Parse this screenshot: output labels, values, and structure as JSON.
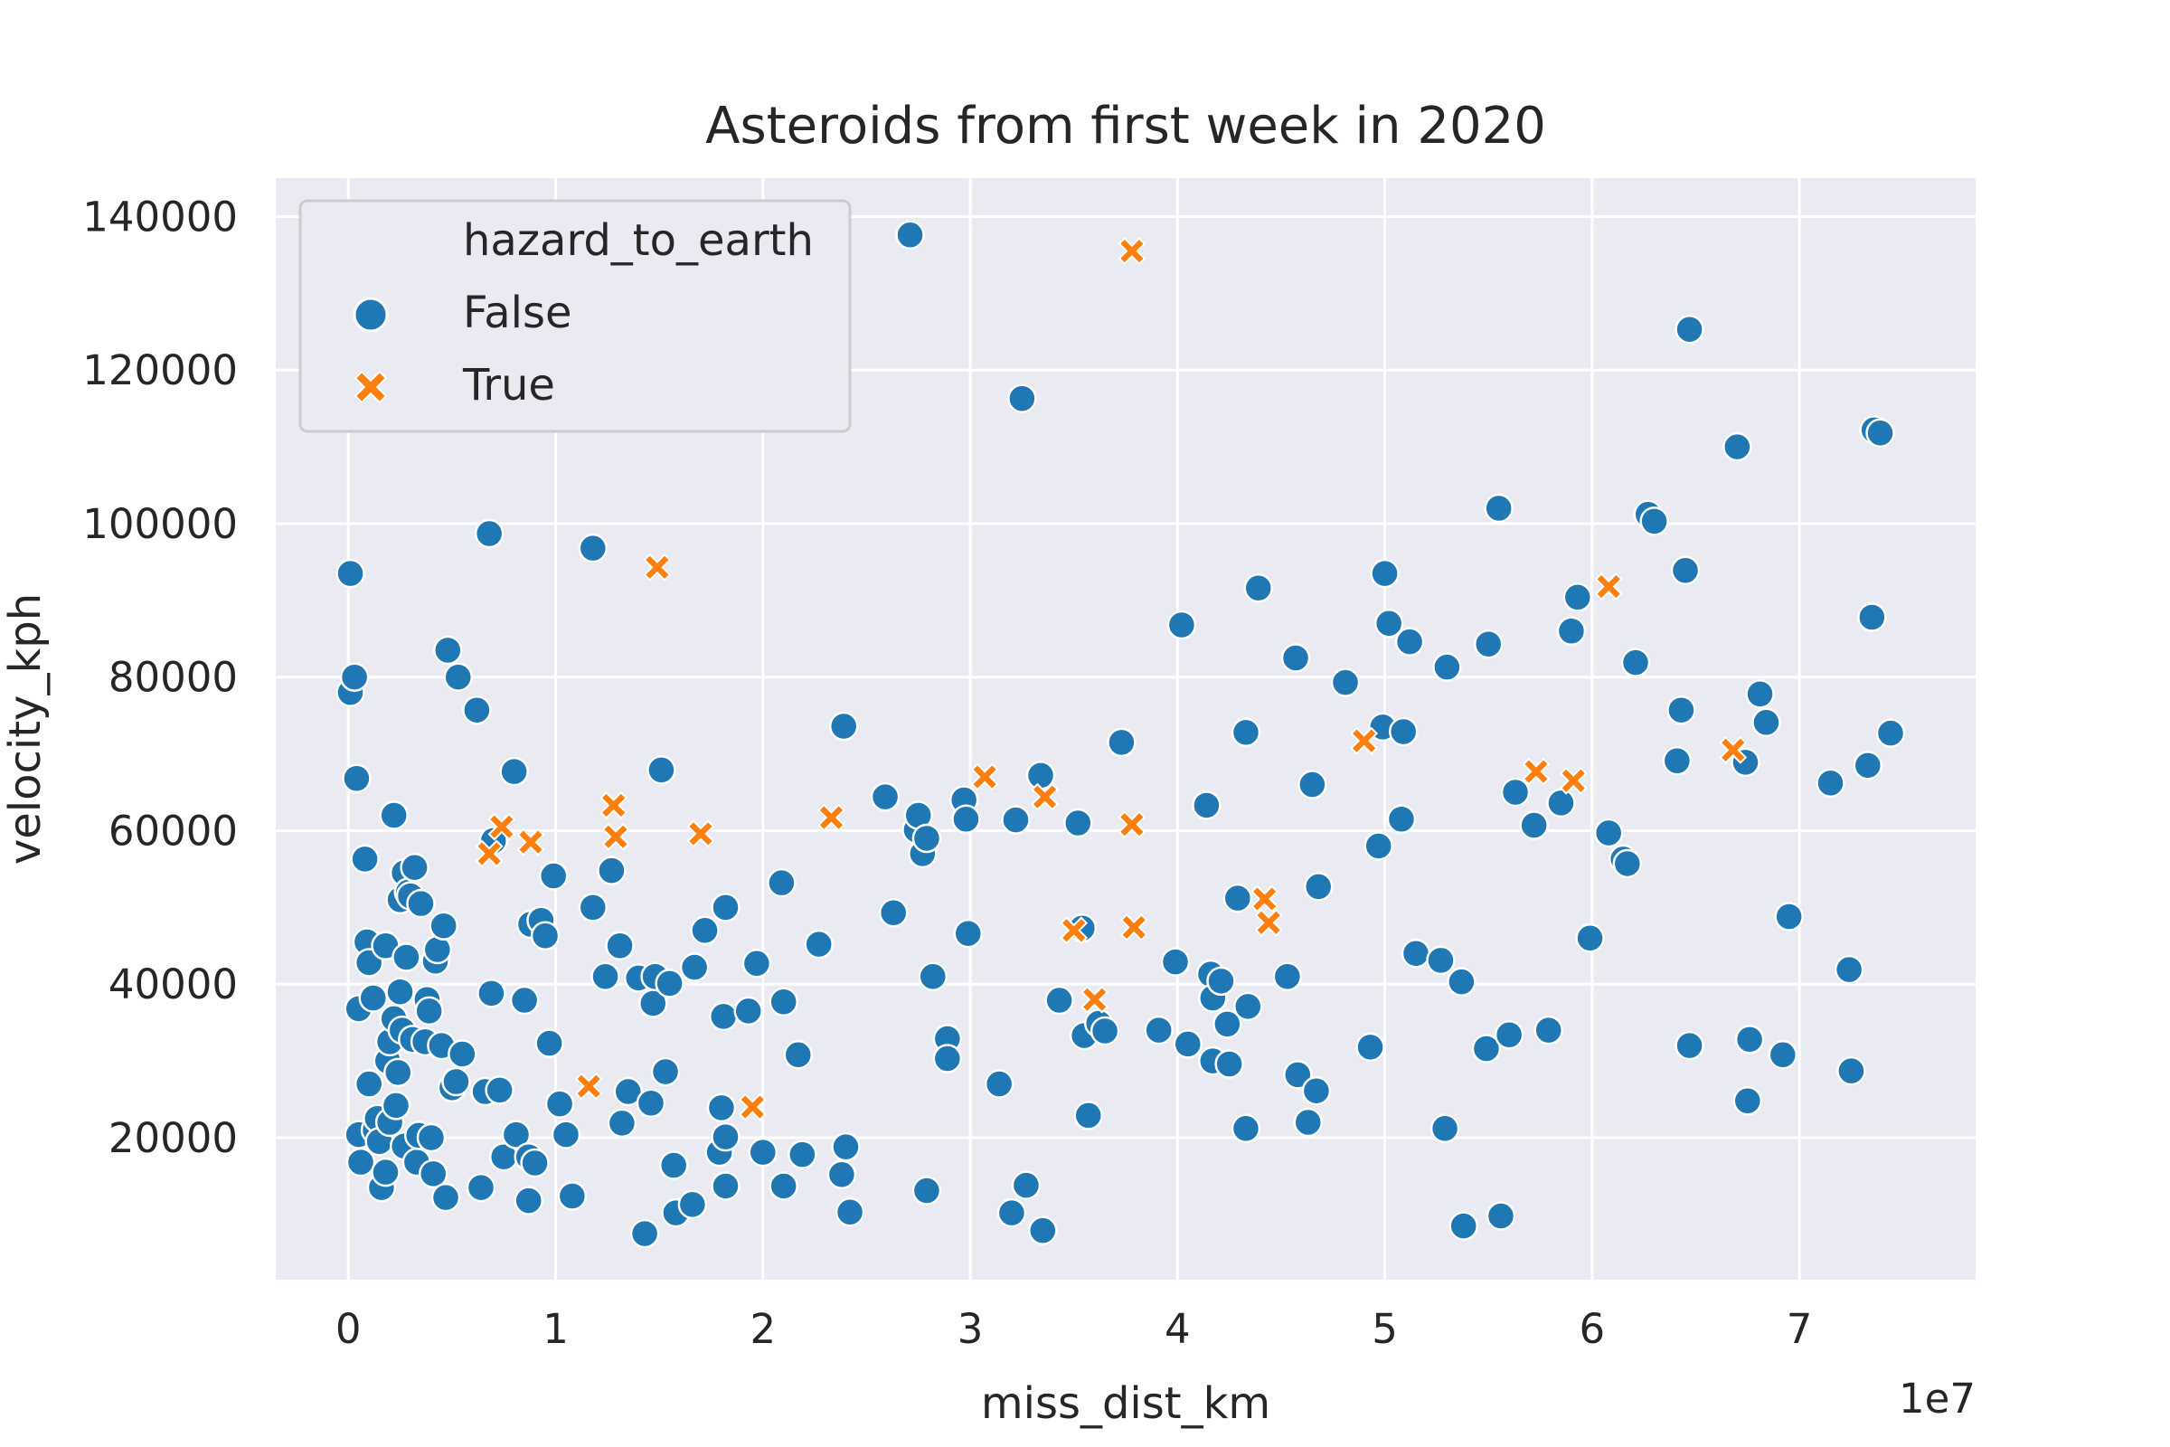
{
  "chart_data": {
    "type": "scatter",
    "title": "Asteroids from first week in 2020",
    "xlabel": "miss_dist_km",
    "ylabel": "velocity_kph",
    "x_offset_label": "1e7",
    "xlim": [
      -0.35,
      7.85
    ],
    "ylim": [
      1500,
      145000
    ],
    "x_ticks": [
      0,
      1,
      2,
      3,
      4,
      5,
      6,
      7
    ],
    "x_tick_labels": [
      "0",
      "1",
      "2",
      "3",
      "4",
      "5",
      "6",
      "7"
    ],
    "y_ticks": [
      20000,
      40000,
      60000,
      80000,
      100000,
      120000,
      140000
    ],
    "y_tick_labels": [
      "20000",
      "40000",
      "60000",
      "80000",
      "100000",
      "120000",
      "140000"
    ],
    "grid": true,
    "legend": {
      "title": "hazard_to_earth",
      "placement": "top-left",
      "entries": [
        "False",
        "True"
      ]
    },
    "colors": {
      "background": "#eaeaf2",
      "grid": "#ffffff",
      "False": "#1f77b4",
      "True": "#ff7f0e"
    },
    "series": [
      {
        "name": "False",
        "marker": "circle",
        "points": [
          [
            0.01,
            93500
          ],
          [
            0.01,
            78000
          ],
          [
            0.03,
            80000
          ],
          [
            0.04,
            66800
          ],
          [
            0.05,
            36800
          ],
          [
            0.05,
            20400
          ],
          [
            0.06,
            16800
          ],
          [
            0.08,
            56300
          ],
          [
            0.09,
            45500
          ],
          [
            0.1,
            42800
          ],
          [
            0.1,
            27000
          ],
          [
            0.12,
            38200
          ],
          [
            0.13,
            21000
          ],
          [
            0.14,
            22500
          ],
          [
            0.15,
            19500
          ],
          [
            0.16,
            13500
          ],
          [
            0.18,
            45000
          ],
          [
            0.18,
            15500
          ],
          [
            0.19,
            30000
          ],
          [
            0.2,
            22000
          ],
          [
            0.2,
            32500
          ],
          [
            0.22,
            35500
          ],
          [
            0.22,
            62000
          ],
          [
            0.23,
            24200
          ],
          [
            0.24,
            28500
          ],
          [
            0.25,
            51000
          ],
          [
            0.25,
            39000
          ],
          [
            0.26,
            34000
          ],
          [
            0.27,
            54500
          ],
          [
            0.27,
            18900
          ],
          [
            0.28,
            43500
          ],
          [
            0.29,
            52000
          ],
          [
            0.3,
            51500
          ],
          [
            0.31,
            32800
          ],
          [
            0.32,
            55200
          ],
          [
            0.33,
            16800
          ],
          [
            0.34,
            20300
          ],
          [
            0.35,
            50500
          ],
          [
            0.37,
            32500
          ],
          [
            0.38,
            38000
          ],
          [
            0.39,
            36500
          ],
          [
            0.4,
            20000
          ],
          [
            0.41,
            15300
          ],
          [
            0.42,
            43000
          ],
          [
            0.43,
            44500
          ],
          [
            0.45,
            32000
          ],
          [
            0.46,
            47600
          ],
          [
            0.47,
            12200
          ],
          [
            0.48,
            83500
          ],
          [
            0.5,
            26500
          ],
          [
            0.52,
            27300
          ],
          [
            0.53,
            80000
          ],
          [
            0.55,
            30900
          ],
          [
            0.62,
            75700
          ],
          [
            0.64,
            13500
          ],
          [
            0.66,
            26000
          ],
          [
            0.68,
            98700
          ],
          [
            0.69,
            38800
          ],
          [
            0.7,
            58700
          ],
          [
            0.73,
            26200
          ],
          [
            0.75,
            17500
          ],
          [
            0.8,
            67700
          ],
          [
            0.81,
            20400
          ],
          [
            0.85,
            37900
          ],
          [
            0.87,
            11800
          ],
          [
            0.87,
            17500
          ],
          [
            0.88,
            47800
          ],
          [
            0.9,
            16700
          ],
          [
            0.93,
            48300
          ],
          [
            0.95,
            46300
          ],
          [
            0.97,
            32300
          ],
          [
            0.99,
            54100
          ],
          [
            1.02,
            24400
          ],
          [
            1.05,
            20400
          ],
          [
            1.08,
            12400
          ],
          [
            1.18,
            50000
          ],
          [
            1.18,
            96800
          ],
          [
            1.24,
            41000
          ],
          [
            1.27,
            54800
          ],
          [
            1.31,
            45000
          ],
          [
            1.32,
            21900
          ],
          [
            1.35,
            26000
          ],
          [
            1.4,
            40800
          ],
          [
            1.43,
            7500
          ],
          [
            1.46,
            24500
          ],
          [
            1.47,
            37500
          ],
          [
            1.48,
            41000
          ],
          [
            1.51,
            67900
          ],
          [
            1.53,
            28600
          ],
          [
            1.55,
            40100
          ],
          [
            1.57,
            16400
          ],
          [
            1.58,
            10200
          ],
          [
            1.66,
            11300
          ],
          [
            1.67,
            42200
          ],
          [
            1.72,
            47000
          ],
          [
            1.79,
            18100
          ],
          [
            1.8,
            23900
          ],
          [
            1.81,
            35800
          ],
          [
            1.82,
            50000
          ],
          [
            1.82,
            13700
          ],
          [
            1.82,
            20100
          ],
          [
            1.93,
            36500
          ],
          [
            1.97,
            42700
          ],
          [
            2.0,
            18100
          ],
          [
            2.09,
            53200
          ],
          [
            2.1,
            37700
          ],
          [
            2.1,
            13700
          ],
          [
            2.17,
            30800
          ],
          [
            2.19,
            17800
          ],
          [
            2.27,
            45200
          ],
          [
            2.38,
            15200
          ],
          [
            2.39,
            73600
          ],
          [
            2.4,
            18800
          ],
          [
            2.42,
            10300
          ],
          [
            2.59,
            64400
          ],
          [
            2.63,
            49300
          ],
          [
            2.71,
            137600
          ],
          [
            2.74,
            60100
          ],
          [
            2.75,
            62000
          ],
          [
            2.77,
            57000
          ],
          [
            2.79,
            59000
          ],
          [
            2.79,
            13100
          ],
          [
            2.82,
            41000
          ],
          [
            2.89,
            32900
          ],
          [
            2.89,
            30300
          ],
          [
            2.97,
            64000
          ],
          [
            2.98,
            61500
          ],
          [
            2.99,
            46600
          ],
          [
            3.14,
            27000
          ],
          [
            3.2,
            10200
          ],
          [
            3.22,
            61400
          ],
          [
            3.25,
            116300
          ],
          [
            3.27,
            13800
          ],
          [
            3.34,
            67200
          ],
          [
            3.35,
            7900
          ],
          [
            3.43,
            37900
          ],
          [
            3.52,
            61000
          ],
          [
            3.54,
            47300
          ],
          [
            3.55,
            33300
          ],
          [
            3.57,
            22900
          ],
          [
            3.62,
            34900
          ],
          [
            3.65,
            33900
          ],
          [
            3.73,
            71500
          ],
          [
            3.91,
            34000
          ],
          [
            3.99,
            42900
          ],
          [
            4.02,
            86800
          ],
          [
            4.05,
            32200
          ],
          [
            4.14,
            63300
          ],
          [
            4.16,
            41300
          ],
          [
            4.17,
            38200
          ],
          [
            4.17,
            30000
          ],
          [
            4.21,
            40400
          ],
          [
            4.24,
            34800
          ],
          [
            4.25,
            29600
          ],
          [
            4.29,
            51200
          ],
          [
            4.33,
            72800
          ],
          [
            4.33,
            21200
          ],
          [
            4.34,
            37100
          ],
          [
            4.39,
            91600
          ],
          [
            4.53,
            41000
          ],
          [
            4.57,
            82500
          ],
          [
            4.58,
            28200
          ],
          [
            4.63,
            22000
          ],
          [
            4.65,
            66000
          ],
          [
            4.67,
            26100
          ],
          [
            4.68,
            52700
          ],
          [
            4.81,
            79300
          ],
          [
            4.93,
            31800
          ],
          [
            4.97,
            58000
          ],
          [
            4.99,
            73500
          ],
          [
            5.0,
            93500
          ],
          [
            5.02,
            87000
          ],
          [
            5.08,
            61500
          ],
          [
            5.09,
            72900
          ],
          [
            5.12,
            84600
          ],
          [
            5.15,
            44000
          ],
          [
            5.27,
            43100
          ],
          [
            5.29,
            21200
          ],
          [
            5.3,
            81300
          ],
          [
            5.37,
            40300
          ],
          [
            5.38,
            8500
          ],
          [
            5.49,
            31600
          ],
          [
            5.5,
            84300
          ],
          [
            5.55,
            102000
          ],
          [
            5.56,
            9800
          ],
          [
            5.6,
            33400
          ],
          [
            5.63,
            65000
          ],
          [
            5.72,
            60700
          ],
          [
            5.79,
            34000
          ],
          [
            5.85,
            63600
          ],
          [
            5.9,
            86000
          ],
          [
            5.93,
            90400
          ],
          [
            5.99,
            46000
          ],
          [
            6.08,
            59700
          ],
          [
            6.15,
            56300
          ],
          [
            6.17,
            55700
          ],
          [
            6.21,
            81900
          ],
          [
            6.27,
            101200
          ],
          [
            6.3,
            100300
          ],
          [
            6.41,
            69100
          ],
          [
            6.43,
            75700
          ],
          [
            6.45,
            93900
          ],
          [
            6.47,
            125300
          ],
          [
            6.47,
            32000
          ],
          [
            6.7,
            110000
          ],
          [
            6.74,
            68900
          ],
          [
            6.75,
            24800
          ],
          [
            6.76,
            32800
          ],
          [
            6.81,
            77800
          ],
          [
            6.84,
            74100
          ],
          [
            6.92,
            30800
          ],
          [
            6.95,
            48800
          ],
          [
            7.15,
            66200
          ],
          [
            7.24,
            41900
          ],
          [
            7.25,
            28700
          ],
          [
            7.33,
            68500
          ],
          [
            7.35,
            87800
          ],
          [
            7.36,
            112200
          ],
          [
            7.39,
            111800
          ],
          [
            7.44,
            72700
          ]
        ]
      },
      {
        "name": "True",
        "marker": "x",
        "points": [
          [
            0.68,
            57000
          ],
          [
            0.74,
            60500
          ],
          [
            0.88,
            58500
          ],
          [
            1.16,
            26700
          ],
          [
            1.28,
            63300
          ],
          [
            1.29,
            59200
          ],
          [
            1.49,
            94300
          ],
          [
            1.7,
            59600
          ],
          [
            1.95,
            24000
          ],
          [
            2.33,
            61700
          ],
          [
            3.07,
            67000
          ],
          [
            3.36,
            64400
          ],
          [
            3.5,
            47000
          ],
          [
            3.6,
            38000
          ],
          [
            3.78,
            135500
          ],
          [
            3.78,
            60800
          ],
          [
            3.79,
            47400
          ],
          [
            4.42,
            51100
          ],
          [
            4.44,
            48000
          ],
          [
            4.9,
            71700
          ],
          [
            5.73,
            67700
          ],
          [
            5.91,
            66500
          ],
          [
            6.08,
            91800
          ],
          [
            6.68,
            70500
          ]
        ]
      }
    ]
  }
}
